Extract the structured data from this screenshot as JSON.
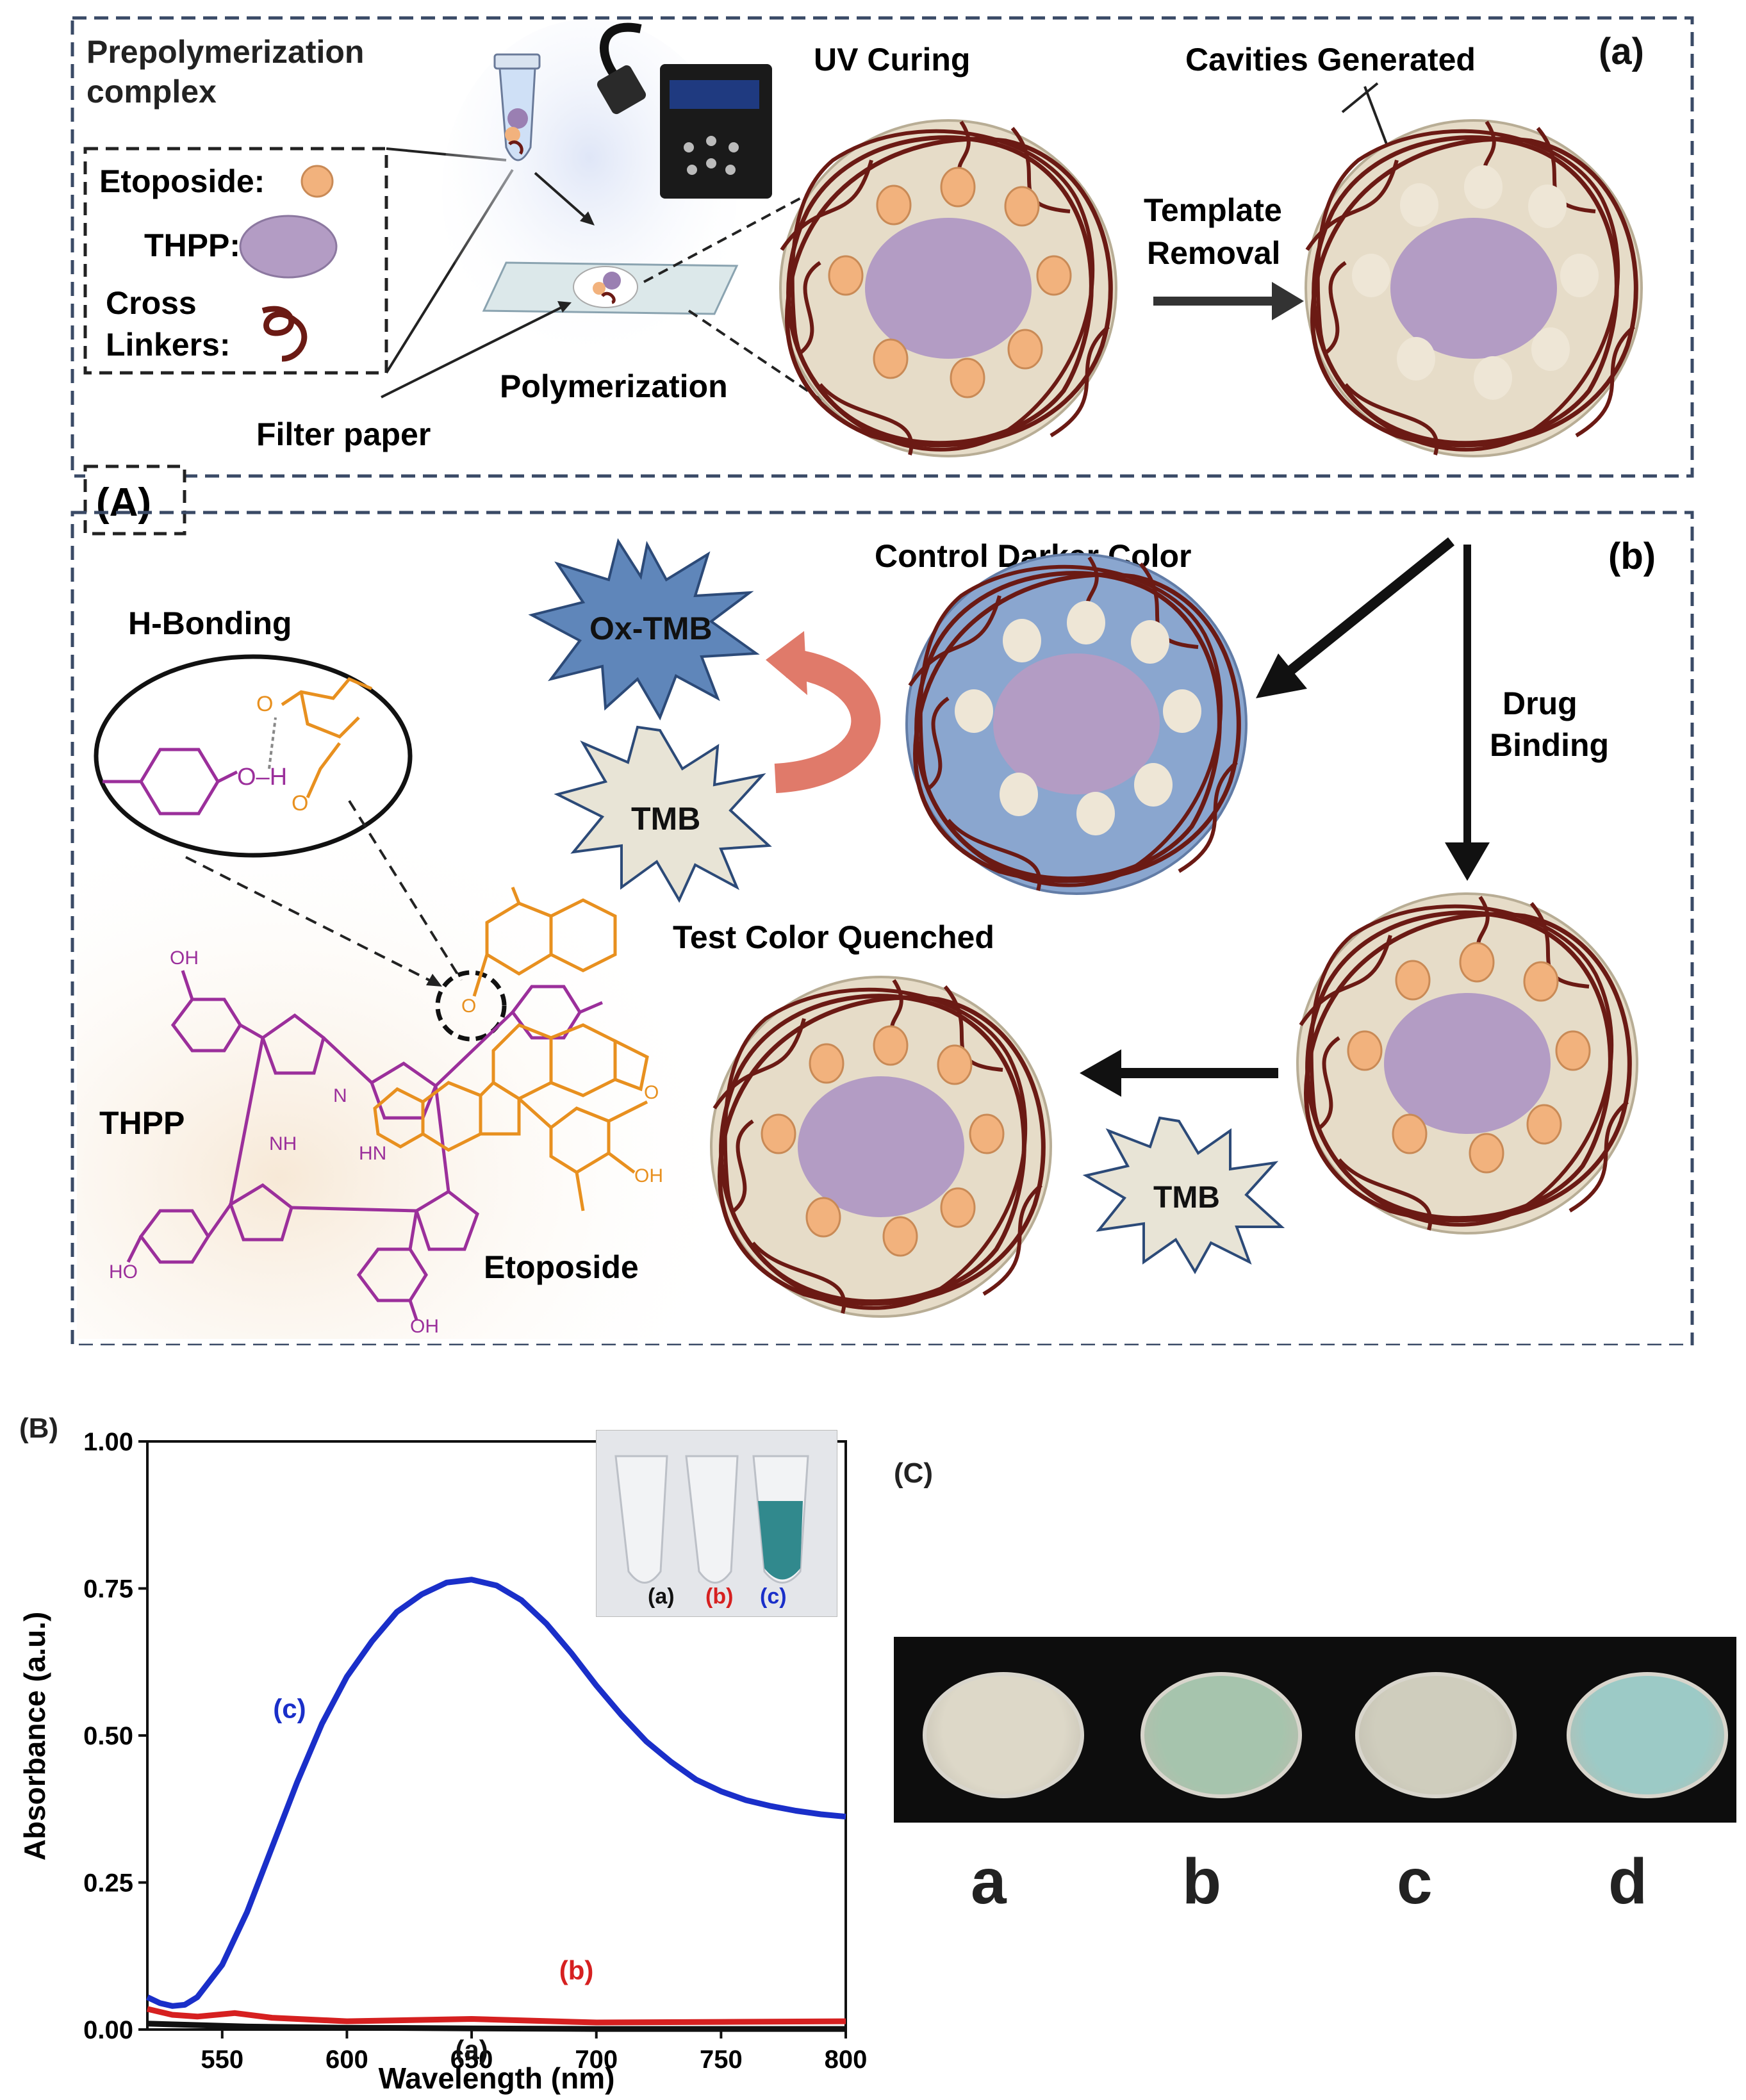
{
  "panel_a": {
    "label": "(a)",
    "prepolymerization": "Prepolymerization\ncomplex",
    "legend": {
      "etoposide": "Etoposide:",
      "thpp": "THPP:",
      "cross": "Cross",
      "linkers": "Linkers:"
    },
    "uv_curing": "UV Curing",
    "cavities": "Cavities Generated",
    "template_removal_1": "Template",
    "template_removal_2": "Removal",
    "polymerization": "Polymerization",
    "filter_paper": "Filter paper"
  },
  "panel_A_label": "(A)",
  "panel_b": {
    "label": "(b)",
    "control": "Control Darker Color",
    "drug_binding_1": "Drug",
    "drug_binding_2": "Binding",
    "test": "Test Color Quenched",
    "h_bonding": "H-Bonding",
    "thpp": "THPP",
    "etoposide": "Etoposide",
    "ox_tmb": "Ox-TMB",
    "tmb_1": "TMB",
    "tmb_2": "TMB",
    "chem": {
      "oh": "OH",
      "ho": "HO",
      "nh": "NH",
      "hn": "HN",
      "n": "N",
      "o": "O",
      "h": "H",
      "oh_bond": "O–H"
    }
  },
  "panel_B": {
    "label": "(B)",
    "inset_labels": [
      "(a)",
      "(b)",
      "(c)"
    ],
    "inset_colors": [
      "#111111",
      "#d62020",
      "#1a2fc9"
    ]
  },
  "panel_C": {
    "label": "(C)",
    "wells": [
      "a",
      "b",
      "c",
      "d"
    ],
    "well_colors": [
      "#ddd8c8",
      "#a6c4ad",
      "#cfcdbd",
      "#9ccac6"
    ]
  },
  "colors": {
    "dash_border": "#3a4a66",
    "bead_fill": "#e6dcc8",
    "bead_edge": "#b8ad95",
    "blue_disc": "#8aa6cf",
    "thpp_fill": "#b39cc4",
    "etoposide": "#f2b27d",
    "linker": "#6b1a14",
    "star_blue": "#5f86ba",
    "star_light": "#e8e4d6",
    "purple_mol": "#9b2f9b",
    "orange_mol": "#e8901f",
    "curve_arrow": "#e07a6a"
  },
  "chart_data": {
    "type": "line",
    "xlabel": "Wavelength (nm)",
    "ylabel": "Absorbance (a.u.)",
    "xlim": [
      520,
      800
    ],
    "ylim": [
      0,
      1.0
    ],
    "x_ticks": [
      550,
      600,
      650,
      700,
      750,
      800
    ],
    "y_ticks": [
      "0.00",
      "0.25",
      "0.50",
      "0.75",
      "1.00"
    ],
    "series": [
      {
        "name": "(a)",
        "color": "#111111",
        "x": [
          520,
          560,
          600,
          650,
          700,
          750,
          800
        ],
        "y": [
          0.01,
          0.005,
          0.003,
          0.002,
          0.001,
          0.001,
          0.001
        ]
      },
      {
        "name": "(b)",
        "color": "#d62020",
        "x": [
          520,
          530,
          540,
          555,
          570,
          600,
          650,
          700,
          750,
          800
        ],
        "y": [
          0.035,
          0.025,
          0.022,
          0.028,
          0.02,
          0.014,
          0.018,
          0.012,
          0.013,
          0.014
        ]
      },
      {
        "name": "(c)",
        "color": "#1a2fc9",
        "x": [
          520,
          525,
          530,
          535,
          540,
          550,
          560,
          570,
          580,
          590,
          600,
          610,
          620,
          630,
          640,
          650,
          660,
          670,
          680,
          690,
          700,
          710,
          720,
          730,
          740,
          750,
          760,
          770,
          780,
          790,
          800
        ],
        "y": [
          0.055,
          0.045,
          0.04,
          0.042,
          0.055,
          0.11,
          0.2,
          0.31,
          0.42,
          0.52,
          0.6,
          0.66,
          0.71,
          0.74,
          0.76,
          0.765,
          0.755,
          0.73,
          0.69,
          0.64,
          0.585,
          0.535,
          0.49,
          0.455,
          0.425,
          0.405,
          0.39,
          0.38,
          0.372,
          0.366,
          0.362
        ]
      }
    ],
    "annotations": [
      {
        "text": "(c)",
        "x": 577,
        "y": 0.53,
        "color": "#1a2fc9"
      },
      {
        "text": "(b)",
        "x": 692,
        "y": 0.085,
        "color": "#d62020"
      },
      {
        "text": "(a)",
        "x": 650,
        "y": -0.05,
        "color": "#111111"
      }
    ]
  }
}
